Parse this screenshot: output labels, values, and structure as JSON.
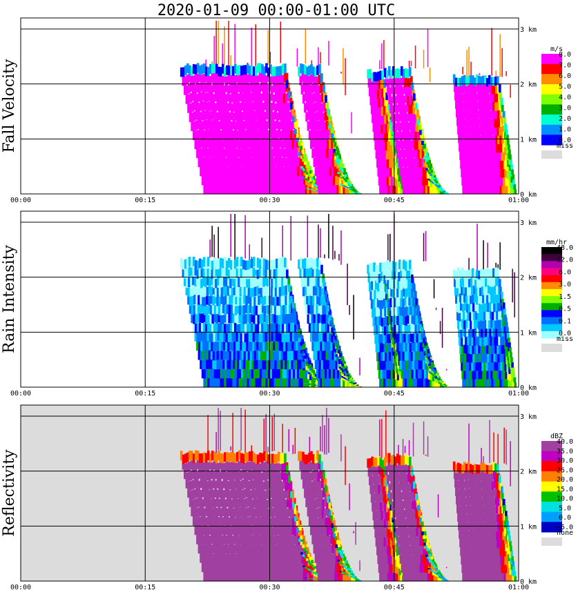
{
  "title": "2020-01-09   00:00-01:00 UTC",
  "chart_data": {
    "type": "heatmap",
    "x_ticks": [
      "00:00",
      "00:15",
      "00:30",
      "00:45",
      "01:00"
    ],
    "y_ticks": [
      "0 km",
      "1 km",
      "2 km",
      "3 km"
    ],
    "ylim_km": [
      0,
      3.2
    ],
    "missing_color": "#dcdcdc",
    "panels": [
      {
        "ylabel": "Fall Velocity",
        "unit": "m/s",
        "labels": [
          "8.0",
          "7.0",
          "6.0",
          "5.0",
          "4.0",
          "3.0",
          "2.0",
          "1.0",
          "0.0",
          "miss"
        ],
        "colors": [
          "#ff00ff",
          "#ff0000",
          "#ff8c00",
          "#ffff00",
          "#80ff00",
          "#00b000",
          "#00ffd0",
          "#0090ff",
          "#0000ff",
          "#dcdcdc"
        ]
      },
      {
        "ylabel": "Rain Intensity",
        "unit": "mm/hr",
        "labels": [
          "48.0",
          "12.0",
          "6.0",
          "3.0",
          "1.5",
          "0.5",
          "0.1",
          "0.0",
          "miss"
        ],
        "colors": [
          "#000000",
          "#400040",
          "#b000b0",
          "#ff0080",
          "#ff0000",
          "#ff8c00",
          "#ffff00",
          "#80ff00",
          "#00b000",
          "#0000ff",
          "#0070ff",
          "#00c8ff",
          "#a0ffff",
          "#dcdcdc"
        ]
      },
      {
        "ylabel": "Reflectivity",
        "unit": "dBZ",
        "labels": [
          "40.0",
          "35.0",
          "30.0",
          "25.0",
          "20.0",
          "15.0",
          "10.0",
          "5.0",
          "0.0",
          "−5.0",
          "none"
        ],
        "colors": [
          "#a040a0",
          "#c000c0",
          "#ff0000",
          "#ff8000",
          "#ffff00",
          "#00c000",
          "#00e0e0",
          "#00a0ff",
          "#0000c0",
          "#dcdcdc"
        ]
      }
    ]
  }
}
